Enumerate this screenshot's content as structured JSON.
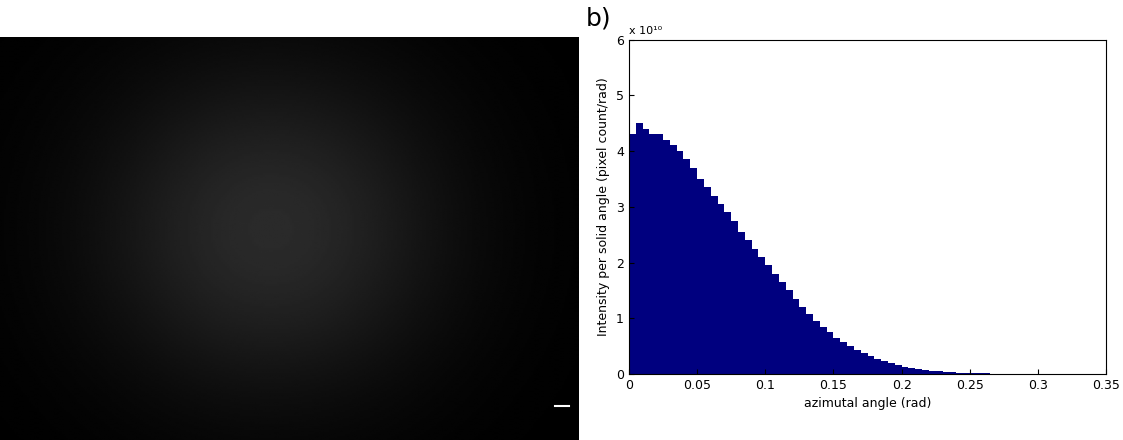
{
  "chart_data": {
    "type": "histogram",
    "annotations": [
      "b)",
      "x 10¹⁰"
    ],
    "x_label": "azimutal angle (rad)",
    "y_label": "Intensity per solid angle (pixel count/rad)",
    "color": "#00007f",
    "bins": [
      0,
      0.005,
      0.01,
      0.015,
      0.02,
      0.025,
      0.03,
      0.035,
      0.04,
      0.045,
      0.05,
      0.055,
      0.06,
      0.065,
      0.07,
      0.075,
      0.08,
      0.085,
      0.09,
      0.095,
      0.1,
      0.105,
      0.11,
      0.115,
      0.12,
      0.125,
      0.13,
      0.135,
      0.14,
      0.145,
      0.15,
      0.155,
      0.16,
      0.165,
      0.17,
      0.175,
      0.18,
      0.185,
      0.19,
      0.195,
      0.2,
      0.205,
      0.21,
      0.215,
      0.22,
      0.225,
      0.23,
      0.235,
      0.24,
      0.245,
      0.25,
      0.255,
      0.26,
      0.265,
      0.27,
      0.275,
      0.28,
      0.285,
      0.29,
      0.295,
      0.3
    ],
    "values": [
      4.3,
      4.5,
      4.4,
      4.3,
      4.3,
      4.2,
      4.1,
      4.0,
      3.85,
      3.7,
      3.5,
      3.35,
      3.2,
      3.05,
      2.9,
      2.75,
      2.55,
      2.4,
      2.25,
      2.1,
      1.95,
      1.8,
      1.65,
      1.5,
      1.35,
      1.2,
      1.08,
      0.95,
      0.85,
      0.75,
      0.65,
      0.57,
      0.5,
      0.43,
      0.37,
      0.32,
      0.27,
      0.23,
      0.19,
      0.16,
      0.13,
      0.11,
      0.09,
      0.07,
      0.06,
      0.05,
      0.04,
      0.03,
      0.025,
      0.02,
      0.015,
      0.012,
      0.01,
      0.008,
      0.006,
      0.005,
      0.004,
      0.003,
      0.002,
      0.001
    ],
    "xlim": [
      0,
      0.35
    ],
    "xticks": [
      0,
      0.05,
      0.1,
      0.15,
      0.2,
      0.25,
      0.3,
      0.35
    ],
    "ylim": [
      0,
      6
    ],
    "yticks": [
      0,
      1,
      2,
      3,
      4,
      5,
      6
    ],
    "grid": false
  }
}
